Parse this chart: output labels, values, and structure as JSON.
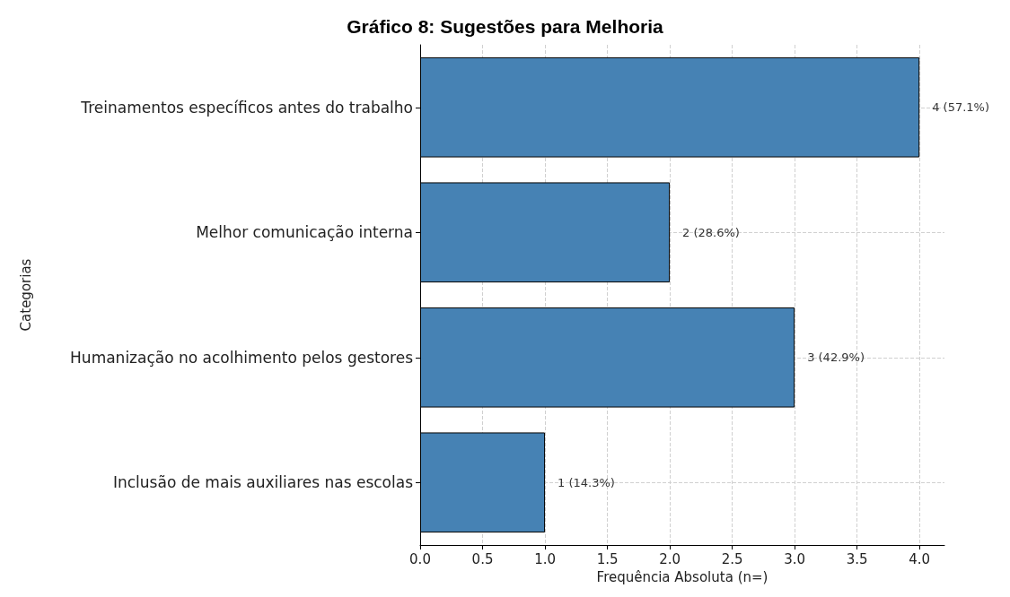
{
  "chart_data": {
    "type": "bar",
    "orientation": "horizontal",
    "title": "Gráfico 8: Sugestões para Melhoria",
    "xlabel": "Frequência Absoluta (n=)",
    "ylabel": "Categorias",
    "categories": [
      "Treinamentos específicos antes do trabalho",
      "Melhor comunicação interna",
      "Humanização no acolhimento pelos gestores",
      "Inclusão de mais auxiliares nas escolas"
    ],
    "values": [
      4,
      2,
      3,
      1
    ],
    "value_labels": [
      "4 (57.1%)",
      "2 (28.6%)",
      "3 (42.9%)",
      "1 (14.3%)"
    ],
    "color": "#4682b4",
    "xlim": [
      0,
      4.2
    ],
    "xticks": [
      {
        "value": 0,
        "label": "0.0"
      },
      {
        "value": 0.5,
        "label": "0.5"
      },
      {
        "value": 1,
        "label": "1.0"
      },
      {
        "value": 1.5,
        "label": "1.5"
      },
      {
        "value": 2,
        "label": "2.0"
      },
      {
        "value": 2.5,
        "label": "2.5"
      },
      {
        "value": 3,
        "label": "3.0"
      },
      {
        "value": 3.5,
        "label": "3.5"
      },
      {
        "value": 4,
        "label": "4.0"
      }
    ],
    "grid": true
  }
}
